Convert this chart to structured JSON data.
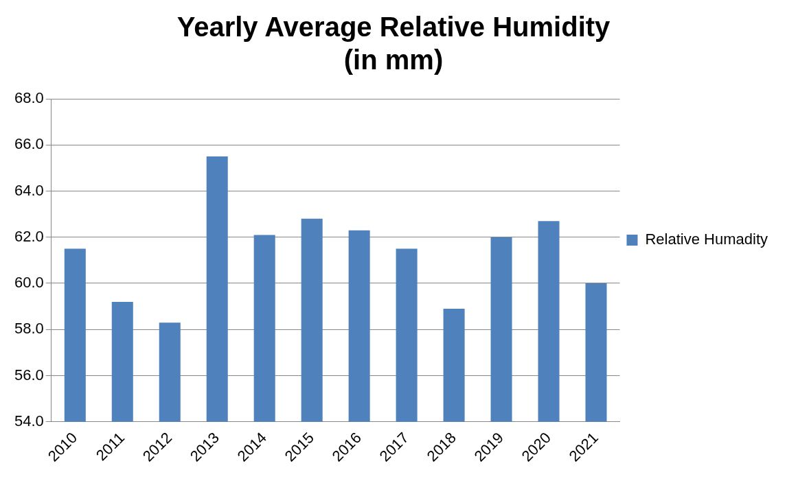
{
  "chart_data": {
    "type": "bar",
    "title": [
      "Yearly Average Relative Humidity",
      "(in mm)"
    ],
    "categories": [
      "2010",
      "2011",
      "2012",
      "2013",
      "2014",
      "2015",
      "2016",
      "2017",
      "2018",
      "2019",
      "2020",
      "2021"
    ],
    "series": [
      {
        "name": "Relative Humadity",
        "color": "#4f81bd",
        "values": [
          61.5,
          59.2,
          58.3,
          65.5,
          62.1,
          62.8,
          62.3,
          61.5,
          58.9,
          62.0,
          62.7,
          60.0
        ]
      }
    ],
    "ylim": [
      54,
      68
    ],
    "yticks": [
      {
        "value": 54,
        "label": "54.0"
      },
      {
        "value": 56,
        "label": "56.0"
      },
      {
        "value": 58,
        "label": "58.0"
      },
      {
        "value": 60,
        "label": "60.0"
      },
      {
        "value": 62,
        "label": "62.0"
      },
      {
        "value": 64,
        "label": "64.0"
      },
      {
        "value": 66,
        "label": "66.0"
      },
      {
        "value": 68,
        "label": "68.0"
      }
    ],
    "grid": "y",
    "legend": "right"
  }
}
